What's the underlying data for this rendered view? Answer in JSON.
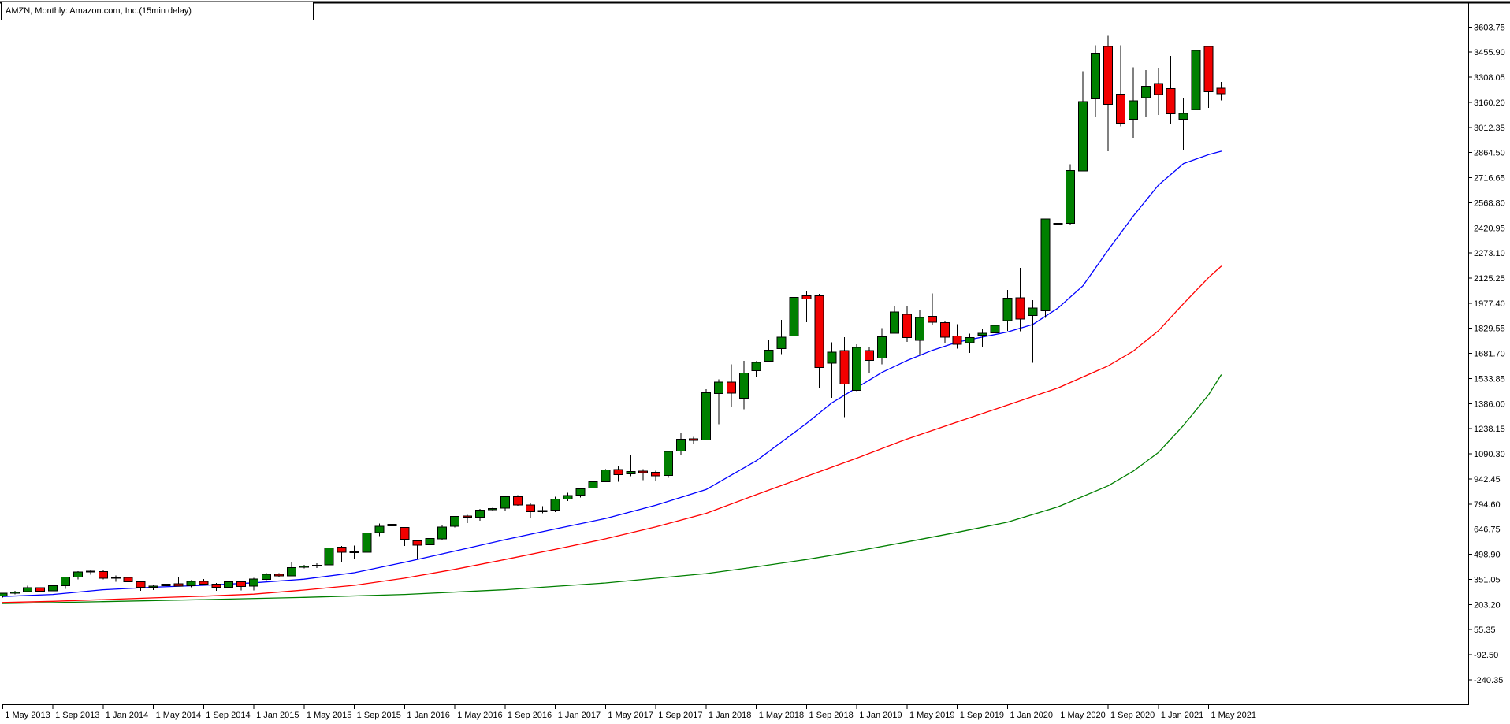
{
  "title_bar": {
    "text": "AMZN, Monthly:  Amazon.com, Inc.(15min delay)"
  },
  "colors": {
    "background": "#ffffff",
    "frame": "#000000",
    "bull_body": "#008000",
    "bear_body": "#f20000",
    "wick": "#000000",
    "ma_fast": "#0000ff",
    "ma_mid": "#ff0000",
    "ma_slow": "#007f00",
    "axis_text": "#000000"
  },
  "chart_data": {
    "type": "candlestick",
    "symbol": "AMZN",
    "timeframe": "Monthly",
    "description": "Amazon.com, Inc.(15min delay)",
    "grid": false,
    "legend_position": "none",
    "y_axis": {
      "side": "right",
      "tick_step": 147.85,
      "tick_labels": [
        "3603.75",
        "3455.90",
        "3308.05",
        "3160.20",
        "3012.35",
        "2864.50",
        "2716.65",
        "2568.80",
        "2420.95",
        "2273.10",
        "2125.25",
        "1977.40",
        "1829.55",
        "1681.70",
        "1533.85",
        "1386.00",
        "1238.15",
        "1090.30",
        "942.45",
        "794.60",
        "646.75",
        "498.90",
        "351.05",
        "203.20",
        "55.35",
        "-92.50",
        "-240.35"
      ]
    },
    "x_axis": {
      "side": "bottom",
      "tick_labels": [
        {
          "label": "1 May 2013",
          "bar": 0
        },
        {
          "label": "1 Sep 2013",
          "bar": 4
        },
        {
          "label": "1 Jan 2014",
          "bar": 8
        },
        {
          "label": "1 May 2014",
          "bar": 12
        },
        {
          "label": "1 Sep 2014",
          "bar": 16
        },
        {
          "label": "1 Jan 2015",
          "bar": 20
        },
        {
          "label": "1 May 2015",
          "bar": 24
        },
        {
          "label": "1 Sep 2015",
          "bar": 28
        },
        {
          "label": "1 Jan 2016",
          "bar": 32
        },
        {
          "label": "1 May 2016",
          "bar": 36
        },
        {
          "label": "1 Sep 2016",
          "bar": 40
        },
        {
          "label": "1 Jan 2017",
          "bar": 44
        },
        {
          "label": "1 May 2017",
          "bar": 48
        },
        {
          "label": "1 Sep 2017",
          "bar": 52
        },
        {
          "label": "1 Jan 2018",
          "bar": 56
        },
        {
          "label": "1 May 2018",
          "bar": 60
        },
        {
          "label": "1 Sep 2018",
          "bar": 64
        },
        {
          "label": "1 Jan 2019",
          "bar": 68
        },
        {
          "label": "1 May 2019",
          "bar": 72
        },
        {
          "label": "1 Sep 2019",
          "bar": 76
        },
        {
          "label": "1 Jan 2020",
          "bar": 80
        },
        {
          "label": "1 May 2020",
          "bar": 84
        },
        {
          "label": "1 Sep 2020",
          "bar": 88
        },
        {
          "label": "1 Jan 2021",
          "bar": 92
        },
        {
          "label": "1 May 2021",
          "bar": 96
        }
      ]
    },
    "candle_columns": [
      "month",
      "open",
      "high",
      "low",
      "close"
    ],
    "candles": [
      [
        "2013-05",
        254,
        271,
        245,
        269
      ],
      [
        "2013-06",
        269,
        284,
        263,
        277
      ],
      [
        "2013-07",
        278,
        313,
        277,
        301
      ],
      [
        "2013-08",
        302,
        305,
        279,
        281
      ],
      [
        "2013-09",
        283,
        320,
        281,
        313
      ],
      [
        "2013-10",
        313,
        368,
        296,
        364
      ],
      [
        "2013-11",
        365,
        399,
        351,
        394
      ],
      [
        "2013-12",
        399,
        406,
        379,
        398
      ],
      [
        "2014-01",
        398,
        408,
        351,
        358
      ],
      [
        "2014-02",
        358,
        375,
        337,
        362
      ],
      [
        "2014-03",
        363,
        383,
        331,
        337
      ],
      [
        "2014-04",
        338,
        342,
        284,
        304
      ],
      [
        "2014-05",
        304,
        316,
        289,
        312
      ],
      [
        "2014-06",
        313,
        336,
        307,
        324
      ],
      [
        "2014-07",
        325,
        367,
        310,
        312
      ],
      [
        "2014-08",
        313,
        346,
        304,
        339
      ],
      [
        "2014-09",
        340,
        353,
        317,
        322
      ],
      [
        "2014-10",
        322,
        331,
        284,
        305
      ],
      [
        "2014-11",
        305,
        341,
        300,
        338
      ],
      [
        "2014-12",
        338,
        342,
        285,
        310
      ],
      [
        "2015-01",
        312,
        359,
        285,
        354
      ],
      [
        "2015-02",
        350,
        389,
        346,
        380
      ],
      [
        "2015-03",
        380,
        388,
        365,
        372
      ],
      [
        "2015-04",
        372,
        452,
        370,
        421
      ],
      [
        "2015-05",
        423,
        436,
        415,
        429
      ],
      [
        "2015-06",
        433,
        446,
        419,
        434
      ],
      [
        "2015-07",
        437,
        580,
        422,
        536
      ],
      [
        "2015-08",
        542,
        548,
        451,
        512
      ],
      [
        "2015-09",
        512,
        551,
        474,
        511
      ],
      [
        "2015-10",
        512,
        626,
        508,
        625
      ],
      [
        "2015-11",
        627,
        680,
        606,
        664
      ],
      [
        "2015-12",
        666,
        696,
        650,
        676
      ],
      [
        "2016-01",
        656,
        657,
        547,
        587
      ],
      [
        "2016-02",
        578,
        581,
        474,
        552
      ],
      [
        "2016-03",
        556,
        603,
        538,
        593
      ],
      [
        "2016-04",
        590,
        669,
        585,
        660
      ],
      [
        "2016-05",
        663,
        724,
        656,
        723
      ],
      [
        "2016-06",
        724,
        731,
        682,
        716
      ],
      [
        "2016-07",
        717,
        766,
        696,
        758
      ],
      [
        "2016-08",
        760,
        774,
        754,
        769
      ],
      [
        "2016-09",
        770,
        840,
        756,
        837
      ],
      [
        "2016-10",
        838,
        847,
        784,
        789
      ],
      [
        "2016-11",
        790,
        800,
        710,
        750
      ],
      [
        "2016-12",
        756,
        782,
        740,
        750
      ],
      [
        "2017-01",
        758,
        839,
        747,
        823
      ],
      [
        "2017-02",
        824,
        860,
        812,
        845
      ],
      [
        "2017-03",
        848,
        886,
        833,
        885
      ],
      [
        "2017-04",
        888,
        928,
        884,
        925
      ],
      [
        "2017-05",
        927,
        1001,
        926,
        995
      ],
      [
        "2017-06",
        998,
        1017,
        927,
        968
      ],
      [
        "2017-07",
        972,
        1083,
        958,
        987
      ],
      [
        "2017-08",
        988,
        1000,
        936,
        980
      ],
      [
        "2017-09",
        982,
        990,
        931,
        961
      ],
      [
        "2017-10",
        964,
        1105,
        950,
        1104
      ],
      [
        "2017-11",
        1106,
        1213,
        1087,
        1176
      ],
      [
        "2017-12",
        1179,
        1190,
        1151,
        1169
      ],
      [
        "2018-01",
        1172,
        1472,
        1170,
        1450
      ],
      [
        "2018-02",
        1445,
        1528,
        1265,
        1512
      ],
      [
        "2018-03",
        1513,
        1617,
        1365,
        1447
      ],
      [
        "2018-04",
        1417,
        1638,
        1352,
        1566
      ],
      [
        "2018-05",
        1580,
        1635,
        1546,
        1630
      ],
      [
        "2018-06",
        1637,
        1763,
        1635,
        1700
      ],
      [
        "2018-07",
        1710,
        1880,
        1678,
        1777
      ],
      [
        "2018-08",
        1784,
        2050,
        1776,
        2012
      ],
      [
        "2018-09",
        2021,
        2050,
        1865,
        2003
      ],
      [
        "2018-10",
        2021,
        2033,
        1476,
        1598
      ],
      [
        "2018-11",
        1623,
        1746,
        1420,
        1690
      ],
      [
        "2018-12",
        1699,
        1778,
        1307,
        1502
      ],
      [
        "2019-01",
        1465,
        1736,
        1460,
        1718
      ],
      [
        "2019-02",
        1699,
        1718,
        1566,
        1640
      ],
      [
        "2019-03",
        1655,
        1830,
        1617,
        1780
      ],
      [
        "2019-04",
        1800,
        1964,
        1798,
        1926
      ],
      [
        "2019-05",
        1911,
        1963,
        1749,
        1775
      ],
      [
        "2019-06",
        1760,
        1935,
        1672,
        1893
      ],
      [
        "2019-07",
        1901,
        2035,
        1849,
        1866
      ],
      [
        "2019-08",
        1862,
        1870,
        1743,
        1776
      ],
      [
        "2019-09",
        1785,
        1853,
        1709,
        1735
      ],
      [
        "2019-10",
        1746,
        1798,
        1685,
        1776
      ],
      [
        "2019-11",
        1788,
        1824,
        1722,
        1801
      ],
      [
        "2019-12",
        1804,
        1901,
        1735,
        1848
      ],
      [
        "2020-01",
        1875,
        2055,
        1815,
        2008
      ],
      [
        "2020-02",
        2010,
        2185,
        1811,
        1883
      ],
      [
        "2020-03",
        1906,
        1996,
        1626,
        1950
      ],
      [
        "2020-04",
        1932,
        2475,
        1892,
        2474
      ],
      [
        "2020-05",
        2448,
        2525,
        2256,
        2442
      ],
      [
        "2020-06",
        2448,
        2796,
        2437,
        2758
      ],
      [
        "2020-07",
        2757,
        3344,
        2754,
        3164
      ],
      [
        "2020-08",
        3180,
        3496,
        3073,
        3450
      ],
      [
        "2020-09",
        3489,
        3552,
        2871,
        3149
      ],
      [
        "2020-10",
        3208,
        3496,
        3019,
        3036
      ],
      [
        "2020-11",
        3061,
        3366,
        2950,
        3168
      ],
      [
        "2020-12",
        3188,
        3350,
        3072,
        3256
      ],
      [
        "2021-01",
        3270,
        3363,
        3086,
        3206
      ],
      [
        "2021-02",
        3242,
        3434,
        3030,
        3092
      ],
      [
        "2021-03",
        3060,
        3184,
        2881,
        3094
      ],
      [
        "2021-04",
        3117,
        3554,
        3115,
        3467
      ],
      [
        "2021-05",
        3489,
        3490,
        3127,
        3223
      ],
      [
        "2021-06",
        3244,
        3280,
        3172,
        3210
      ]
    ],
    "moving_averages": [
      {
        "name": "ma-fast",
        "color": "#0000ff",
        "points": [
          [
            0,
            250
          ],
          [
            4,
            262
          ],
          [
            8,
            290
          ],
          [
            12,
            305
          ],
          [
            16,
            316
          ],
          [
            20,
            331
          ],
          [
            24,
            352
          ],
          [
            28,
            390
          ],
          [
            32,
            452
          ],
          [
            36,
            518
          ],
          [
            40,
            585
          ],
          [
            44,
            648
          ],
          [
            48,
            710
          ],
          [
            52,
            788
          ],
          [
            56,
            880
          ],
          [
            60,
            1050
          ],
          [
            62,
            1160
          ],
          [
            64,
            1270
          ],
          [
            66,
            1390
          ],
          [
            68,
            1480
          ],
          [
            70,
            1570
          ],
          [
            72,
            1640
          ],
          [
            74,
            1700
          ],
          [
            76,
            1748
          ],
          [
            78,
            1778
          ],
          [
            80,
            1808
          ],
          [
            82,
            1852
          ],
          [
            84,
            1948
          ],
          [
            86,
            2080
          ],
          [
            88,
            2290
          ],
          [
            90,
            2490
          ],
          [
            92,
            2672
          ],
          [
            94,
            2800
          ],
          [
            96,
            2852
          ],
          [
            97,
            2872
          ]
        ]
      },
      {
        "name": "ma-mid",
        "color": "#ff0000",
        "points": [
          [
            0,
            215
          ],
          [
            4,
            222
          ],
          [
            8,
            232
          ],
          [
            12,
            242
          ],
          [
            16,
            252
          ],
          [
            20,
            264
          ],
          [
            24,
            288
          ],
          [
            28,
            316
          ],
          [
            32,
            358
          ],
          [
            36,
            410
          ],
          [
            40,
            468
          ],
          [
            44,
            528
          ],
          [
            48,
            590
          ],
          [
            52,
            660
          ],
          [
            56,
            740
          ],
          [
            60,
            850
          ],
          [
            64,
            958
          ],
          [
            68,
            1065
          ],
          [
            72,
            1178
          ],
          [
            76,
            1278
          ],
          [
            80,
            1378
          ],
          [
            84,
            1478
          ],
          [
            88,
            1608
          ],
          [
            90,
            1695
          ],
          [
            92,
            1815
          ],
          [
            94,
            1975
          ],
          [
            96,
            2128
          ],
          [
            97,
            2195
          ]
        ]
      },
      {
        "name": "ma-slow",
        "color": "#007f00",
        "points": [
          [
            0,
            209
          ],
          [
            8,
            220
          ],
          [
            16,
            232
          ],
          [
            24,
            245
          ],
          [
            32,
            262
          ],
          [
            40,
            290
          ],
          [
            48,
            330
          ],
          [
            56,
            385
          ],
          [
            60,
            425
          ],
          [
            64,
            468
          ],
          [
            68,
            518
          ],
          [
            72,
            572
          ],
          [
            76,
            628
          ],
          [
            80,
            688
          ],
          [
            84,
            778
          ],
          [
            88,
            902
          ],
          [
            90,
            988
          ],
          [
            92,
            1098
          ],
          [
            94,
            1258
          ],
          [
            96,
            1438
          ],
          [
            97,
            1555
          ]
        ]
      }
    ]
  }
}
